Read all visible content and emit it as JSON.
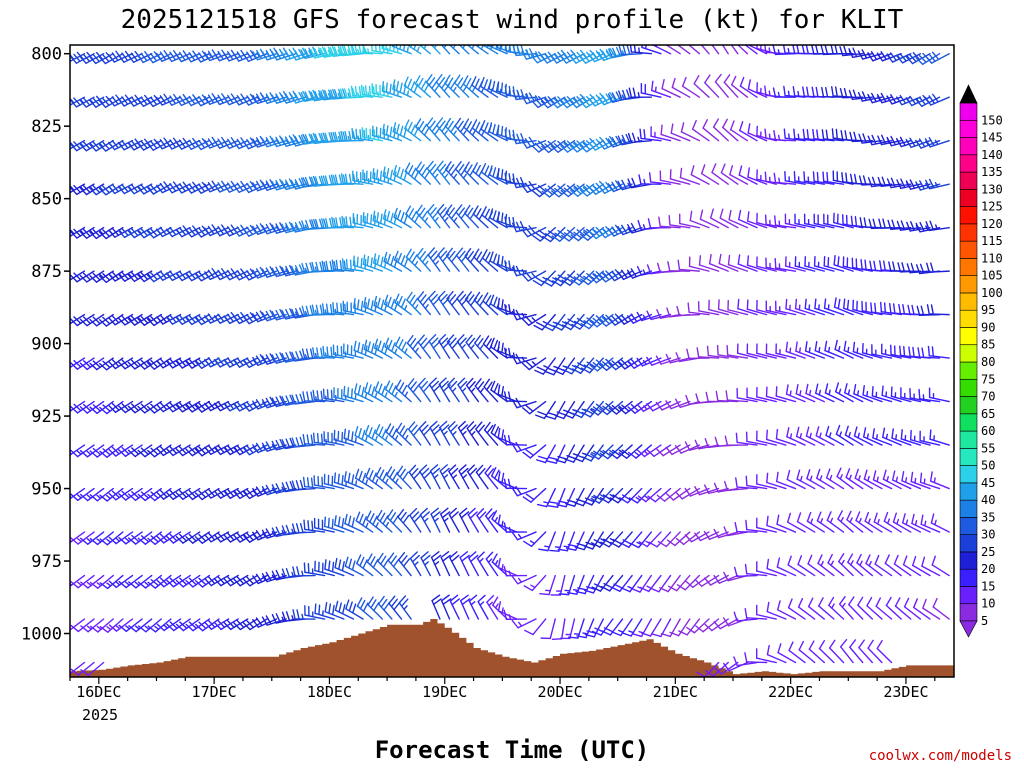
{
  "chart_data": {
    "type": "wind-barb-time-height",
    "title": "2025121518 GFS forecast wind profile (kt) for KLIT",
    "xlabel": "Forecast Time (UTC)",
    "ylabel": "",
    "credit": "coolwx.com/models",
    "credit_color": "#cc0000",
    "y_axis": {
      "units": "hPa",
      "range": [
        1015,
        797
      ],
      "ticks": [
        800,
        825,
        850,
        875,
        900,
        925,
        950,
        975,
        1000
      ],
      "tick_labels": [
        "800",
        "825",
        "850",
        "875",
        "900",
        "925",
        "950",
        "975",
        "1000"
      ]
    },
    "x_axis": {
      "units": "hours since 2025-12-16 00 UTC",
      "range": [
        -6,
        178
      ],
      "ticks": [
        0,
        24,
        48,
        72,
        96,
        120,
        144,
        168
      ],
      "tick_labels": [
        "16DEC",
        "17DEC",
        "18DEC",
        "19DEC",
        "20DEC",
        "21DEC",
        "22DEC",
        "23DEC"
      ],
      "year_label": "2025"
    },
    "levels_hpa": [
      800,
      815,
      830,
      845,
      860,
      875,
      890,
      905,
      920,
      935,
      950,
      965,
      980,
      995,
      1010
    ],
    "time_step_hours": 6,
    "wind_keyframes": [
      {
        "t": -3,
        "low": {
          "speed": 10,
          "dir": 230
        },
        "high": {
          "speed": 28,
          "dir": 240
        }
      },
      {
        "t": 12,
        "low": {
          "speed": 15,
          "dir": 230
        },
        "high": {
          "speed": 30,
          "dir": 245
        }
      },
      {
        "t": 36,
        "low": {
          "speed": 20,
          "dir": 240
        },
        "high": {
          "speed": 35,
          "dir": 250
        }
      },
      {
        "t": 48,
        "low": {
          "speed": 25,
          "dir": 285
        },
        "high": {
          "speed": 45,
          "dir": 255
        }
      },
      {
        "t": 60,
        "low": {
          "speed": 30,
          "dir": 320
        },
        "high": {
          "speed": 48,
          "dir": 275
        }
      },
      {
        "t": 72,
        "low": {
          "speed": 20,
          "dir": 340
        },
        "high": {
          "speed": 40,
          "dir": 320
        }
      },
      {
        "t": 84,
        "low": {
          "speed": 12,
          "dir": 330
        },
        "high": {
          "speed": 35,
          "dir": 300
        }
      },
      {
        "t": 96,
        "low": {
          "speed": 10,
          "dir": 180
        },
        "high": {
          "speed": 35,
          "dir": 240
        }
      },
      {
        "t": 108,
        "low": {
          "speed": 18,
          "dir": 215
        },
        "high": {
          "speed": 45,
          "dir": 245
        }
      },
      {
        "t": 120,
        "low": {
          "speed": 10,
          "dir": 200
        },
        "high": {
          "speed": 10,
          "dir": 300
        }
      },
      {
        "t": 132,
        "low": {
          "speed": 10,
          "dir": 230
        },
        "high": {
          "speed": 8,
          "dir": 330
        }
      },
      {
        "t": 144,
        "low": {
          "speed": 10,
          "dir": 300
        },
        "high": {
          "speed": 15,
          "dir": 270
        }
      },
      {
        "t": 156,
        "low": {
          "speed": 12,
          "dir": 320
        },
        "high": {
          "speed": 22,
          "dir": 270
        }
      },
      {
        "t": 168,
        "low": {
          "speed": 10,
          "dir": 315
        },
        "high": {
          "speed": 25,
          "dir": 245
        }
      },
      {
        "t": 175,
        "low": {
          "speed": 8,
          "dir": 310
        },
        "high": {
          "speed": 30,
          "dir": 240
        }
      }
    ],
    "surface_pressure": {
      "t": [
        -6,
        0,
        6,
        12,
        18,
        24,
        30,
        36,
        42,
        48,
        54,
        60,
        66,
        69,
        72,
        78,
        84,
        90,
        96,
        102,
        108,
        114,
        120,
        126,
        132,
        138,
        144,
        150,
        156,
        162,
        168,
        174,
        178
      ],
      "hpa": [
        1013,
        1012.5,
        1011,
        1010,
        1008,
        1008,
        1008,
        1008,
        1005,
        1003,
        1000,
        997,
        997,
        995,
        998,
        1005,
        1008,
        1010,
        1007,
        1006,
        1004,
        1002,
        1007,
        1010,
        1014,
        1013,
        1014,
        1013,
        1013,
        1013,
        1011,
        1011,
        1011
      ],
      "fill_color": "#a0522d"
    },
    "colorbar": {
      "values": [
        5,
        10,
        15,
        20,
        25,
        30,
        35,
        40,
        45,
        50,
        55,
        60,
        65,
        70,
        75,
        80,
        85,
        90,
        95,
        100,
        105,
        110,
        115,
        120,
        125,
        130,
        135,
        140,
        145,
        150
      ],
      "colors": [
        "#8a2be2",
        "#6a1fff",
        "#3a1fff",
        "#1e20d8",
        "#1b3fd9",
        "#1e5ae0",
        "#1c80e6",
        "#21a0ea",
        "#2ad1e8",
        "#26e8c0",
        "#1ee8a0",
        "#10e060",
        "#22d020",
        "#33dd00",
        "#66ee00",
        "#ccff00",
        "#ffff00",
        "#ffdd00",
        "#ffbb00",
        "#ff9900",
        "#ff7700",
        "#ff5500",
        "#ff3300",
        "#ff1100",
        "#ee0022",
        "#ee0055",
        "#ff0088",
        "#ff00bb",
        "#ff00dd",
        "#ee00ee"
      ],
      "top_arrow_color": "#000000",
      "bottom_arrow_color": "#8a2be2"
    }
  }
}
